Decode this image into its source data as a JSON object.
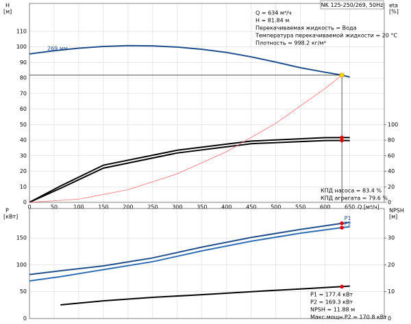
{
  "chart_data": [
    {
      "type": "line",
      "title": "NK 125-250/269, 50Hz",
      "y_label": "H",
      "y_unit": "[м]",
      "y2_label": "eta",
      "y2_unit": "[%]",
      "x_label": "Q [м³/ч]",
      "xlim": [
        0,
        720
      ],
      "xticks": [
        0,
        50,
        100,
        150,
        200,
        250,
        300,
        350,
        400,
        450,
        500,
        550,
        600,
        650
      ],
      "ylim": [
        0,
        128
      ],
      "yticks": [
        0,
        10,
        20,
        30,
        40,
        50,
        60,
        70,
        80,
        90,
        100,
        110
      ],
      "y2lim": [
        0,
        256
      ],
      "y2ticks": [
        0,
        20,
        40,
        60,
        80,
        100
      ],
      "grid": true,
      "info_lines": [
        "Q = 634 м³/ч",
        "H = 81.84 м",
        "Перекачиваемая жидкость = Вода",
        "Температура перекачиваемой жидкости = 20 °C",
        "Плотность = 998.2 кг/м³"
      ],
      "efficiency_lines": [
        "КПД насоса = 83.4 %",
        "КПД агрегата = 79.6 %"
      ],
      "duty_point": {
        "x": 634,
        "y": 81.84
      },
      "duty_eta": [
        83.4,
        79.6
      ],
      "series": [
        {
          "name": "269 мм",
          "color": "#1f4e8c",
          "x": [
            0,
            50,
            100,
            150,
            200,
            250,
            300,
            350,
            400,
            450,
            500,
            550,
            600,
            634,
            650
          ],
          "values": [
            95.5,
            97.5,
            99.2,
            100.3,
            100.8,
            100.7,
            99.9,
            98.5,
            96.4,
            93.6,
            90.2,
            86.6,
            83.7,
            81.84,
            80.6
          ]
        },
        {
          "color": "#000000",
          "axis": "y2",
          "x": [
            0,
            63,
            150,
            300,
            450,
            600,
            634,
            650
          ],
          "values": [
            0,
            21,
            47.8,
            67,
            78.8,
            83.2,
            83.4,
            83.3
          ]
        },
        {
          "color": "#000000",
          "axis": "y2",
          "x": [
            0,
            63,
            150,
            300,
            450,
            600,
            634,
            650
          ],
          "values": [
            0,
            18,
            44,
            63.5,
            75.5,
            79.5,
            79.6,
            79.5
          ]
        },
        {
          "color": "#ff6a6a",
          "x": [
            0,
            100,
            200,
            300,
            400,
            500,
            600,
            634
          ],
          "values": [
            0,
            2.04,
            8.14,
            18.33,
            32.58,
            50.9,
            73.3,
            81.84
          ]
        }
      ]
    },
    {
      "type": "line",
      "y_label": "P",
      "y_unit": "[кВт]",
      "y2_label": "NPSH",
      "y2_unit": "[м]",
      "xlim": [
        0,
        720
      ],
      "xticks": [
        0,
        50,
        100,
        150,
        200,
        250,
        300,
        350,
        400,
        450,
        500,
        550,
        600,
        650
      ],
      "show_xtick_labels": false,
      "ylim": [
        0,
        205
      ],
      "yticks": [
        0,
        50,
        100,
        150
      ],
      "y2lim": [
        0,
        41
      ],
      "y2ticks": [
        0,
        10,
        20,
        30
      ],
      "grid": true,
      "info_lines": [
        "P1 = 177.4 кВт",
        "P2 = 169.3 кВт",
        "NPSH = 11.88 м",
        "Макс.мощн.P2 = 170.8 кВт"
      ],
      "duty_x": 634,
      "duty_power": [
        177.4,
        169.3
      ],
      "duty_npsh": 11.88,
      "series": [
        {
          "name": "P1",
          "color": "#1f4e8c",
          "x": [
            0,
            63,
            150,
            250,
            350,
            450,
            550,
            634,
            650
          ],
          "values": [
            82,
            89,
            98,
            113,
            133,
            151,
            166,
            177.4,
            179
          ]
        },
        {
          "name": "P2",
          "color": "#2e6db4",
          "x": [
            0,
            63,
            150,
            250,
            350,
            450,
            550,
            634,
            650
          ],
          "values": [
            70,
            78,
            91,
            106,
            126,
            144,
            159,
            169.3,
            171
          ]
        },
        {
          "color": "#000000",
          "axis": "y2",
          "x": [
            63,
            150,
            250,
            350,
            450,
            550,
            634,
            650
          ],
          "values": [
            5.1,
            6.6,
            7.9,
            8.9,
            10.0,
            11.0,
            11.88,
            12.1
          ]
        }
      ]
    }
  ]
}
